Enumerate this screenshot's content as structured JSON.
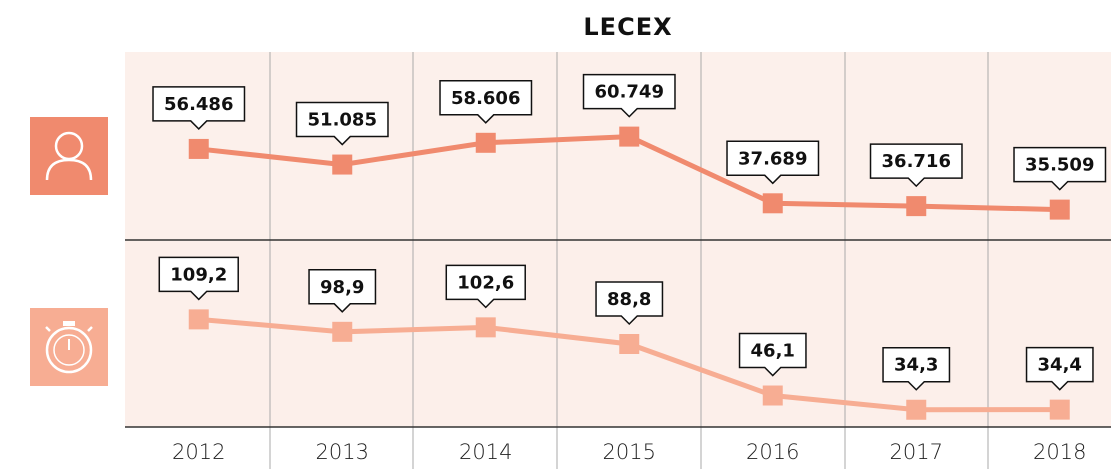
{
  "chart_data": {
    "type": "line",
    "title": "LECEX",
    "categories": [
      "2012",
      "2013",
      "2014",
      "2015",
      "2016",
      "2017",
      "2018"
    ],
    "series": [
      {
        "color": "#f08a6e",
        "values": [
          56486,
          51085,
          58606,
          60749,
          37689,
          36716,
          35509
        ],
        "value_labels": [
          "56.486",
          "51.085",
          "58.606",
          "60.749",
          "37.689",
          "36.716",
          "35.509"
        ]
      },
      {
        "color": "#f7ad93",
        "axis": "y2",
        "values": [
          109.2,
          98.9,
          102.6,
          88.8,
          46.1,
          34.3,
          34.4
        ],
        "value_labels": [
          "109,2",
          "98,9",
          "102,6",
          "88,8",
          "46,1",
          "34,3",
          "34,4"
        ]
      }
    ],
    "ylim": [
      25000,
      90000
    ],
    "y2lim": [
      20,
      175
    ]
  }
}
